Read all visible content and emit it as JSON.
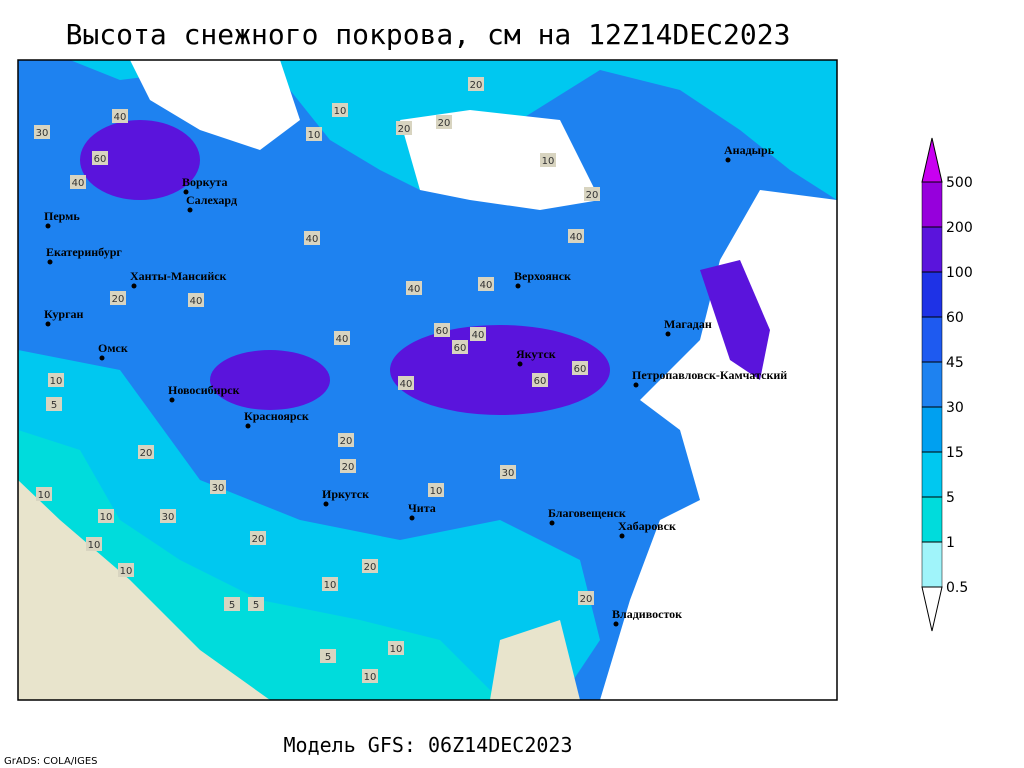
{
  "title": "Высота снежного покрова, см на 12Z14DEC2023",
  "footer": "Модель GFS: 06Z14DEC2023",
  "credit": "GrADS: COLA/IGES",
  "colorbar": {
    "levels": [
      0.5,
      1,
      5,
      15,
      30,
      45,
      60,
      100,
      200,
      500
    ],
    "colors": [
      "#ffffff",
      "#a0f4fa",
      "#00dcdc",
      "#00c8f0",
      "#00a0f0",
      "#1e82f0",
      "#1e5af0",
      "#1e32e6",
      "#5a14dc",
      "#9600dc",
      "#c800f0"
    ]
  },
  "cities": [
    "Воркута",
    "Салехард",
    "Пермь",
    "Екатеринбург",
    "Ханты-Мансийск",
    "Курган",
    "Омск",
    "Новосибирск",
    "Красноярск",
    "Иркутск",
    "Чита",
    "Верхоянск",
    "Якутск",
    "Магадан",
    "Анадырь",
    "Петропавловск-Камчатский",
    "Благовещенск",
    "Хабаровск",
    "Владивосток"
  ],
  "contour_labels": [
    30,
    40,
    60,
    40,
    10,
    10,
    20,
    20,
    20,
    10,
    40,
    60,
    40,
    20,
    40,
    20,
    40,
    40,
    40,
    40,
    60,
    60,
    60,
    40,
    30,
    10,
    5,
    10,
    10,
    20,
    30,
    20,
    10,
    20,
    10,
    10,
    20,
    5,
    5,
    10,
    10,
    20,
    30,
    20,
    5,
    10
  ]
}
